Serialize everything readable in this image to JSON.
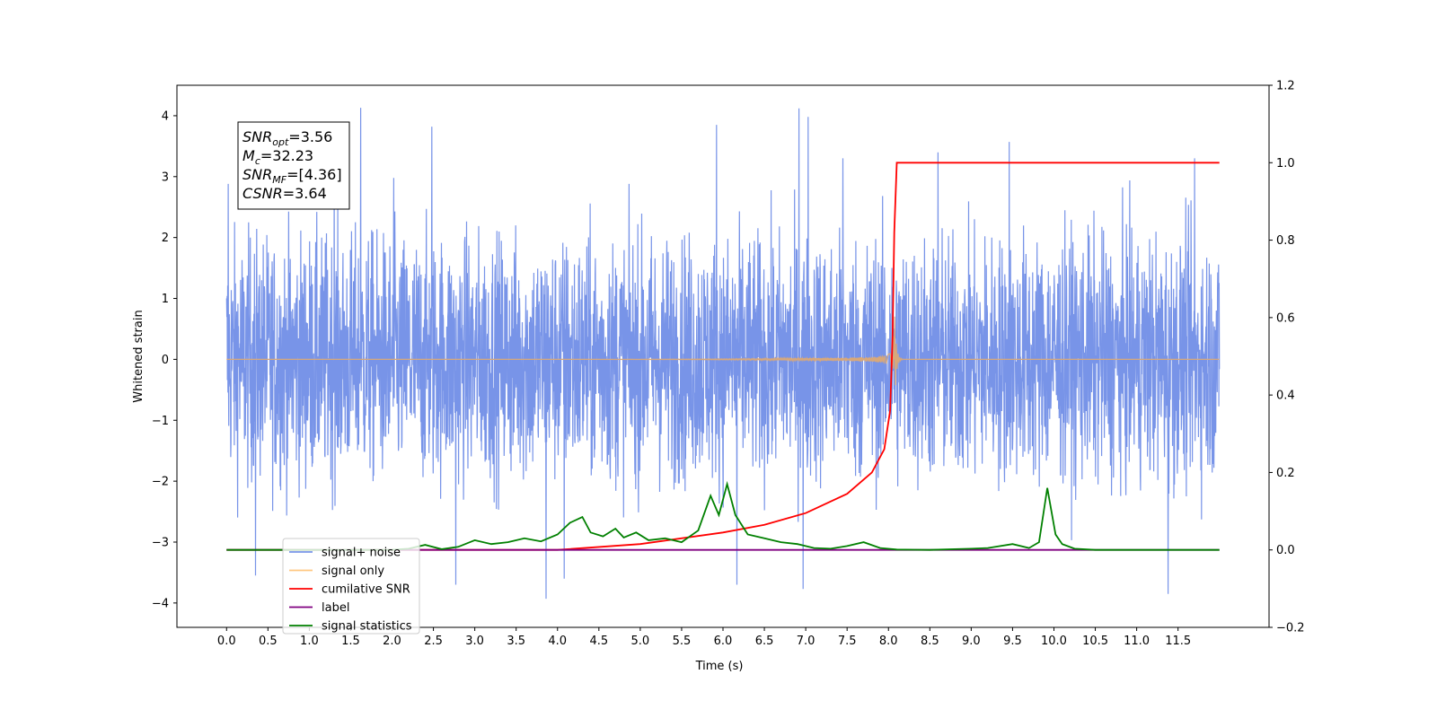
{
  "chart_data": {
    "type": "line",
    "xlabel": "Time (s)",
    "ylabel": "Whitened strain",
    "xlim": [
      -0.6,
      12.6
    ],
    "ylim": [
      -4.4,
      4.5
    ],
    "y2lim": [
      -0.2,
      1.2
    ],
    "x_ticks": [
      "0.0",
      "0.5",
      "1.0",
      "1.5",
      "2.0",
      "2.5",
      "3.0",
      "3.5",
      "4.0",
      "4.5",
      "5.0",
      "5.5",
      "6.0",
      "6.5",
      "7.0",
      "7.5",
      "8.0",
      "8.5",
      "9.0",
      "9.5",
      "10.0",
      "10.5",
      "11.0",
      "11.5"
    ],
    "y_ticks": [
      "4",
      "3",
      "2",
      "1",
      "0",
      "−1",
      "−2",
      "−3",
      "−4"
    ],
    "y2_ticks": [
      "1.2",
      "1.0",
      "0.8",
      "0.6",
      "0.4",
      "0.2",
      "0.0",
      "−0.2"
    ],
    "annotation": {
      "lines": [
        {
          "base": "SNR",
          "sub": "opt",
          "value": "=3.56"
        },
        {
          "base": "M",
          "sub": "c",
          "value": "=32.23"
        },
        {
          "base": "SNR",
          "sub": "MF",
          "value": "=[4.36]"
        },
        {
          "base": "CSNR",
          "sub": "",
          "value": "=3.64"
        }
      ]
    },
    "legend": {
      "placement": "lower-left",
      "entries": [
        {
          "label": "signal+ noise",
          "color": "#7894e8"
        },
        {
          "label": "signal only",
          "color": "#ffc880"
        },
        {
          "label": "cumilative SNR",
          "color": "#ff0000"
        },
        {
          "label": "label",
          "color": "#800080"
        },
        {
          "label": "signal statistics",
          "color": "#008000"
        }
      ]
    },
    "series": [
      {
        "name": "signal+ noise",
        "axis": "left",
        "color": "#7894e8",
        "x_range": [
          0.0,
          12.0
        ],
        "envelope": [
          -2.6,
          2.6
        ],
        "peaks": [
          {
            "x": 0.02,
            "y": 2.88
          },
          {
            "x": 0.35,
            "y": -3.55
          },
          {
            "x": 1.3,
            "y": 3.05
          },
          {
            "x": 1.62,
            "y": 4.13
          },
          {
            "x": 2.02,
            "y": 2.98
          },
          {
            "x": 2.48,
            "y": 3.82
          },
          {
            "x": 2.77,
            "y": -3.7
          },
          {
            "x": 3.86,
            "y": -3.93
          },
          {
            "x": 4.08,
            "y": -3.6
          },
          {
            "x": 5.92,
            "y": 3.85
          },
          {
            "x": 6.17,
            "y": -3.7
          },
          {
            "x": 6.92,
            "y": 4.12
          },
          {
            "x": 6.97,
            "y": -3.77
          },
          {
            "x": 7.03,
            "y": 3.98
          },
          {
            "x": 7.45,
            "y": 3.3
          },
          {
            "x": 8.6,
            "y": 3.4
          },
          {
            "x": 9.46,
            "y": 3.57
          },
          {
            "x": 11.38,
            "y": -3.85
          },
          {
            "x": 11.7,
            "y": 3.3
          }
        ]
      },
      {
        "name": "signal only",
        "axis": "left",
        "color": "#d8a87a",
        "chirp_start": 4.5,
        "merger": 8.07,
        "peak_amplitude": 0.9
      },
      {
        "name": "cumilative SNR",
        "axis": "right",
        "color": "#ff0000",
        "x": [
          0.0,
          2.0,
          4.0,
          5.0,
          6.0,
          6.5,
          7.0,
          7.5,
          7.8,
          7.95,
          8.02,
          8.05,
          8.07,
          8.1,
          12.0
        ],
        "y": [
          0.0,
          0.0,
          0.0,
          0.015,
          0.045,
          0.065,
          0.095,
          0.145,
          0.2,
          0.26,
          0.36,
          0.55,
          0.82,
          1.0,
          1.0
        ]
      },
      {
        "name": "label",
        "axis": "right",
        "color": "#800080",
        "x": [
          0.0,
          12.0
        ],
        "y": [
          0.0,
          0.0
        ]
      },
      {
        "name": "signal statistics",
        "axis": "right",
        "color": "#008000",
        "x": [
          0.0,
          2.0,
          2.2,
          2.4,
          2.6,
          2.8,
          3.0,
          3.2,
          3.4,
          3.6,
          3.8,
          4.0,
          4.15,
          4.3,
          4.4,
          4.55,
          4.7,
          4.8,
          4.95,
          5.1,
          5.3,
          5.5,
          5.7,
          5.85,
          5.95,
          6.05,
          6.15,
          6.3,
          6.5,
          6.7,
          6.9,
          7.1,
          7.3,
          7.5,
          7.7,
          7.9,
          8.1,
          8.5,
          9.0,
          9.2,
          9.5,
          9.7,
          9.82,
          9.92,
          10.02,
          10.1,
          10.25,
          10.5,
          12.0
        ],
        "y": [
          0.0,
          0.0,
          0.003,
          0.013,
          0.002,
          0.008,
          0.025,
          0.015,
          0.02,
          0.03,
          0.022,
          0.04,
          0.07,
          0.085,
          0.045,
          0.035,
          0.055,
          0.032,
          0.045,
          0.025,
          0.03,
          0.02,
          0.05,
          0.14,
          0.09,
          0.17,
          0.09,
          0.04,
          0.03,
          0.02,
          0.015,
          0.005,
          0.003,
          0.01,
          0.02,
          0.005,
          0.001,
          0.0,
          0.003,
          0.005,
          0.015,
          0.005,
          0.02,
          0.16,
          0.04,
          0.015,
          0.003,
          0.0,
          0.0
        ]
      }
    ]
  }
}
